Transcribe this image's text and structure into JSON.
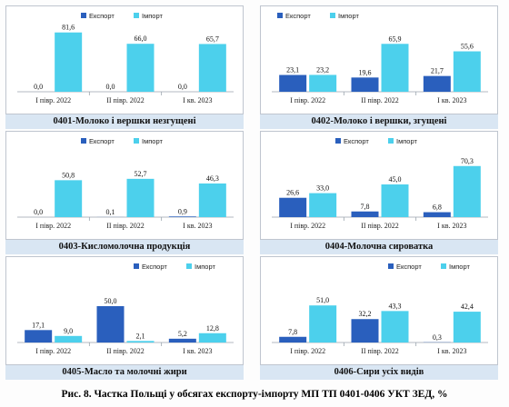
{
  "colors": {
    "export": "#2a5fbd",
    "import": "#4cd0ec"
  },
  "figure_caption": "Рис. 8. Частка Польщі у обсягах експорту-імпорту МП ТП 0401-0406 УКТ ЗЕД, %",
  "chart_data": [
    {
      "type": "bar",
      "title": "0401-Молоко і вершки незгущені",
      "categories": [
        "І півр. 2022",
        "ІІ півр. 2022",
        "І кв. 2023"
      ],
      "series": [
        {
          "name": "Експорт",
          "values": [
            0.0,
            0.0,
            0.0
          ]
        },
        {
          "name": "Імпорт",
          "values": [
            81.6,
            66.0,
            65.7
          ]
        }
      ],
      "legend": "top-center"
    },
    {
      "type": "bar",
      "title": "0402-Молоко і вершки, згущені",
      "categories": [
        "І півр. 2022",
        "ІІ півр. 2022",
        "І кв. 2023"
      ],
      "series": [
        {
          "name": "Експорт",
          "values": [
            23.1,
            19.6,
            21.7
          ]
        },
        {
          "name": "Імпорт",
          "values": [
            23.2,
            65.9,
            55.6
          ]
        }
      ],
      "legend": "top-left"
    },
    {
      "type": "bar",
      "title": "0403-Кисломолочна продукція",
      "categories": [
        "І півр. 2022",
        "ІІ півр. 2022",
        "І кв. 2023"
      ],
      "series": [
        {
          "name": "Експорт",
          "values": [
            0.0,
            0.1,
            0.9
          ]
        },
        {
          "name": "Імпорт",
          "values": [
            50.8,
            52.7,
            46.3
          ]
        }
      ],
      "legend": "top-center"
    },
    {
      "type": "bar",
      "title": "0404-Молочна сироватка",
      "categories": [
        "І півр. 2022",
        "ІІ півр. 2022",
        "І кв. 2023"
      ],
      "series": [
        {
          "name": "Експорт",
          "values": [
            26.6,
            7.8,
            6.8
          ]
        },
        {
          "name": "Імпорт",
          "values": [
            33.0,
            45.0,
            70.3
          ]
        }
      ],
      "legend": "top-center"
    },
    {
      "type": "bar",
      "title": "0405-Масло та молочні жири",
      "categories": [
        "І півр. 2022",
        "ІІ півр. 2022",
        "І кв. 2023"
      ],
      "series": [
        {
          "name": "Експорт",
          "values": [
            17.1,
            50.0,
            5.2
          ]
        },
        {
          "name": "Імпорт",
          "values": [
            9.0,
            2.1,
            12.8
          ]
        }
      ],
      "legend": "top-right"
    },
    {
      "type": "bar",
      "title": "0406-Сири усіх видів",
      "categories": [
        "І півр. 2022",
        "ІІ півр. 2022",
        "І кв. 2023"
      ],
      "series": [
        {
          "name": "Експорт",
          "values": [
            7.8,
            32.2,
            0.3
          ]
        },
        {
          "name": "Імпорт",
          "values": [
            51.0,
            43.3,
            42.4
          ]
        }
      ],
      "legend": "top-right"
    }
  ]
}
